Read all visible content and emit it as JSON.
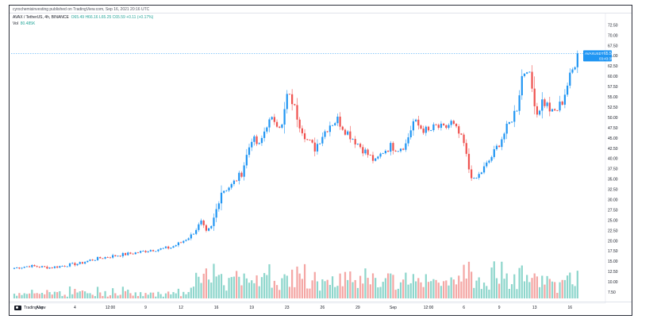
{
  "header": {
    "published_by": "cyrochemisinvesting published on TradingView.com, Sep 16, 2021 20:16 UTC"
  },
  "legend": {
    "symbol": "AVAX / TetherUS, 4h, BINANCE",
    "ohlc": "O65.49  H66.16  L65.25  C65.59  +0.11 (+0.17%)",
    "volume_label": "Vol",
    "volume_value": "80.485K"
  },
  "price_tag": {
    "symbol": "AVAXUSDT",
    "value": "65.59",
    "countdown": "03:43:35"
  },
  "footer": {
    "brand": "TradingView"
  },
  "colors": {
    "up": "#26a69a",
    "down": "#ef5350",
    "up_body": "#2196f3",
    "vol_up": "#8ed6cc",
    "vol_down": "#f4a7a5",
    "tag": "#2196f3"
  },
  "chart_data": {
    "type": "candlestick",
    "title": "AVAX / TetherUS, 4h, BINANCE",
    "ylim": [
      6.0,
      73.0
    ],
    "y_ticks": [
      7.5,
      10,
      12.5,
      15,
      17.5,
      20,
      22.5,
      25,
      27.5,
      30,
      32.5,
      35,
      37.5,
      40,
      42.5,
      45,
      47.5,
      50,
      52.5,
      55,
      57.5,
      60,
      62.5,
      65,
      67.5,
      70,
      72.5
    ],
    "x_ticks": [
      "Aug",
      "4",
      "12:00",
      "9",
      "12",
      "16",
      "19",
      "23",
      "26",
      "29",
      "Sep",
      "12:00",
      "6",
      "9",
      "13",
      "16"
    ],
    "grid": false,
    "price_anchors": [
      [
        0,
        13.4
      ],
      [
        3,
        13.6
      ],
      [
        6,
        13.9
      ],
      [
        10,
        13.7
      ],
      [
        14,
        13.5
      ],
      [
        18,
        13.8
      ],
      [
        22,
        14.2
      ],
      [
        26,
        14.5
      ],
      [
        30,
        15.3
      ],
      [
        34,
        15.8
      ],
      [
        38,
        16.2
      ],
      [
        42,
        16.6
      ],
      [
        46,
        16.9
      ],
      [
        50,
        17.3
      ],
      [
        54,
        17.8
      ],
      [
        58,
        18.0
      ],
      [
        62,
        18.4
      ],
      [
        66,
        19.6
      ],
      [
        70,
        21.3
      ],
      [
        74,
        24.5
      ],
      [
        76,
        22.0
      ],
      [
        78,
        23.3
      ],
      [
        82,
        32.0
      ],
      [
        86,
        33.5
      ],
      [
        90,
        36.5
      ],
      [
        94,
        45.0
      ],
      [
        97,
        43.0
      ],
      [
        100,
        48.5
      ],
      [
        103,
        49.5
      ],
      [
        106,
        47.8
      ],
      [
        108,
        55.3
      ],
      [
        110,
        54.0
      ],
      [
        113,
        48.5
      ],
      [
        116,
        44.5
      ],
      [
        119,
        42.5
      ],
      [
        122,
        45.8
      ],
      [
        125,
        48.4
      ],
      [
        128,
        49.5
      ],
      [
        131,
        47.0
      ],
      [
        134,
        45.0
      ],
      [
        137,
        43.0
      ],
      [
        140,
        41.0
      ],
      [
        143,
        39.2
      ],
      [
        146,
        41.8
      ],
      [
        149,
        43.0
      ],
      [
        152,
        42.5
      ],
      [
        155,
        43.5
      ],
      [
        158,
        49.0
      ],
      [
        161,
        47.5
      ],
      [
        164,
        46.5
      ],
      [
        167,
        47.8
      ],
      [
        170,
        47.2
      ],
      [
        173,
        48.7
      ],
      [
        176,
        46.0
      ],
      [
        178,
        43.5
      ],
      [
        180,
        37.5
      ],
      [
        182,
        34.5
      ],
      [
        184,
        36.0
      ],
      [
        187,
        38.5
      ],
      [
        190,
        41.5
      ],
      [
        193,
        45.0
      ],
      [
        196,
        48.5
      ],
      [
        199,
        52.5
      ],
      [
        201,
        60.0
      ],
      [
        203,
        62.5
      ],
      [
        205,
        57.0
      ],
      [
        207,
        51.0
      ],
      [
        209,
        54.0
      ],
      [
        211,
        53.0
      ],
      [
        213,
        51.0
      ],
      [
        215,
        52.0
      ],
      [
        217,
        54.0
      ],
      [
        219,
        58.0
      ],
      [
        221,
        61.5
      ],
      [
        223,
        65.6
      ]
    ],
    "last_price": 65.59
  }
}
